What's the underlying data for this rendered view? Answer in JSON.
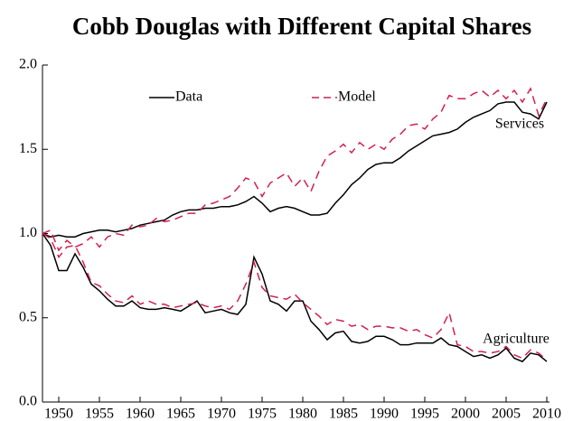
{
  "chart_data": {
    "type": "line",
    "title": "Cobb Douglas with Different Capital Shares",
    "x": [
      1948,
      1949,
      1950,
      1951,
      1952,
      1953,
      1954,
      1955,
      1956,
      1957,
      1958,
      1959,
      1960,
      1961,
      1962,
      1963,
      1964,
      1965,
      1966,
      1967,
      1968,
      1969,
      1970,
      1971,
      1972,
      1973,
      1974,
      1975,
      1976,
      1977,
      1978,
      1979,
      1980,
      1981,
      1982,
      1983,
      1984,
      1985,
      1986,
      1987,
      1988,
      1989,
      1990,
      1991,
      1992,
      1993,
      1994,
      1995,
      1996,
      1997,
      1998,
      1999,
      2000,
      2001,
      2002,
      2003,
      2004,
      2005,
      2006,
      2007,
      2008,
      2009,
      2010
    ],
    "series": [
      {
        "name": "Data",
        "color": "#000000",
        "dash": "solid"
      },
      {
        "name": "Model",
        "color": "#d1204d",
        "dash": "dashed"
      }
    ],
    "groups": [
      {
        "label": "Services",
        "values": [
          [
            1.0,
            0.98,
            0.99,
            0.98,
            0.98,
            1.0,
            1.01,
            1.02,
            1.02,
            1.01,
            1.02,
            1.03,
            1.05,
            1.06,
            1.07,
            1.08,
            1.11,
            1.13,
            1.14,
            1.14,
            1.15,
            1.15,
            1.16,
            1.16,
            1.17,
            1.19,
            1.22,
            1.18,
            1.13,
            1.15,
            1.16,
            1.15,
            1.13,
            1.11,
            1.11,
            1.12,
            1.18,
            1.23,
            1.29,
            1.33,
            1.38,
            1.41,
            1.42,
            1.42,
            1.45,
            1.49,
            1.52,
            1.55,
            1.58,
            1.59,
            1.6,
            1.62,
            1.66,
            1.69,
            1.71,
            1.73,
            1.77,
            1.78,
            1.78,
            1.72,
            1.71,
            1.68,
            1.78
          ],
          [
            1.0,
            1.02,
            0.9,
            0.96,
            0.92,
            0.94,
            0.98,
            0.92,
            0.98,
            1.0,
            0.99,
            1.05,
            1.04,
            1.05,
            1.09,
            1.07,
            1.08,
            1.1,
            1.12,
            1.12,
            1.17,
            1.18,
            1.2,
            1.22,
            1.27,
            1.33,
            1.31,
            1.22,
            1.3,
            1.33,
            1.36,
            1.28,
            1.33,
            1.25,
            1.37,
            1.46,
            1.49,
            1.53,
            1.48,
            1.54,
            1.5,
            1.53,
            1.5,
            1.56,
            1.59,
            1.64,
            1.65,
            1.62,
            1.68,
            1.72,
            1.82,
            1.8,
            1.8,
            1.83,
            1.85,
            1.81,
            1.85,
            1.8,
            1.85,
            1.78,
            1.86,
            1.7,
            1.8
          ]
        ]
      },
      {
        "label": "Agriculture",
        "values": [
          [
            1.0,
            0.93,
            0.78,
            0.78,
            0.88,
            0.8,
            0.7,
            0.66,
            0.61,
            0.57,
            0.57,
            0.6,
            0.56,
            0.55,
            0.55,
            0.56,
            0.55,
            0.54,
            0.57,
            0.6,
            0.53,
            0.54,
            0.55,
            0.53,
            0.52,
            0.58,
            0.86,
            0.76,
            0.6,
            0.58,
            0.54,
            0.6,
            0.6,
            0.48,
            0.43,
            0.37,
            0.41,
            0.42,
            0.36,
            0.35,
            0.36,
            0.39,
            0.39,
            0.37,
            0.34,
            0.34,
            0.35,
            0.35,
            0.35,
            0.38,
            0.34,
            0.33,
            0.3,
            0.27,
            0.28,
            0.26,
            0.28,
            0.32,
            0.26,
            0.24,
            0.29,
            0.28,
            0.24
          ],
          [
            1.0,
            0.97,
            0.86,
            0.92,
            0.93,
            0.83,
            0.71,
            0.69,
            0.64,
            0.6,
            0.59,
            0.63,
            0.58,
            0.6,
            0.58,
            0.58,
            0.56,
            0.57,
            0.58,
            0.59,
            0.57,
            0.56,
            0.57,
            0.55,
            0.6,
            0.7,
            0.83,
            0.68,
            0.63,
            0.62,
            0.61,
            0.64,
            0.59,
            0.55,
            0.51,
            0.46,
            0.49,
            0.48,
            0.45,
            0.46,
            0.43,
            0.45,
            0.45,
            0.44,
            0.44,
            0.42,
            0.43,
            0.4,
            0.38,
            0.43,
            0.53,
            0.34,
            0.33,
            0.3,
            0.3,
            0.29,
            0.3,
            0.33,
            0.28,
            0.26,
            0.31,
            0.29,
            0.25
          ]
        ]
      }
    ],
    "xlim": [
      1948,
      2010
    ],
    "xticks": [
      1950,
      1955,
      1960,
      1965,
      1970,
      1975,
      1980,
      1985,
      1990,
      1995,
      2000,
      2005,
      2010
    ],
    "ylim": [
      0,
      2
    ],
    "yticks": [
      {
        "value": 0,
        "label": "0.0"
      },
      {
        "value": 0.5,
        "label": "0.5"
      },
      {
        "value": 1,
        "label": "1.0"
      },
      {
        "value": 1.5,
        "label": "1.5"
      },
      {
        "value": 2,
        "label": "2.0"
      }
    ],
    "grid": false,
    "legend": "top"
  }
}
